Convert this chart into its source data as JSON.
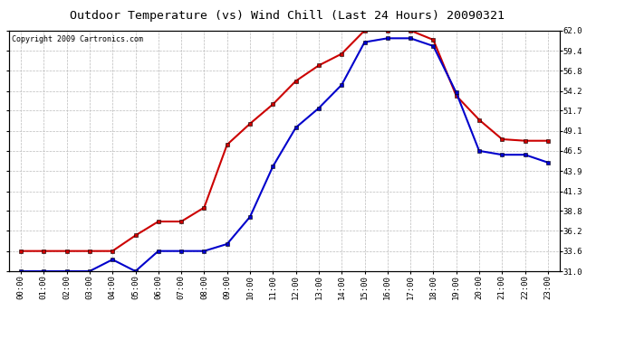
{
  "title": "Outdoor Temperature (vs) Wind Chill (Last 24 Hours) 20090321",
  "copyright": "Copyright 2009 Cartronics.com",
  "x_labels": [
    "00:00",
    "01:00",
    "02:00",
    "03:00",
    "04:00",
    "05:00",
    "06:00",
    "07:00",
    "08:00",
    "09:00",
    "10:00",
    "11:00",
    "12:00",
    "13:00",
    "14:00",
    "15:00",
    "16:00",
    "17:00",
    "18:00",
    "19:00",
    "20:00",
    "21:00",
    "22:00",
    "23:00"
  ],
  "outdoor_temp": [
    33.6,
    33.6,
    33.6,
    33.6,
    33.6,
    35.6,
    37.4,
    37.4,
    39.2,
    47.3,
    50.0,
    52.5,
    55.5,
    57.5,
    59.0,
    62.0,
    62.0,
    62.0,
    60.8,
    53.6,
    50.5,
    48.0,
    47.8,
    47.8
  ],
  "wind_chill": [
    31.0,
    31.0,
    31.0,
    31.0,
    32.5,
    31.0,
    33.6,
    33.6,
    33.6,
    34.5,
    38.0,
    44.5,
    49.5,
    52.0,
    55.0,
    60.5,
    61.0,
    61.0,
    60.0,
    54.0,
    46.5,
    46.0,
    46.0,
    45.0
  ],
  "temp_color": "#cc0000",
  "windchill_color": "#0000cc",
  "bg_color": "#ffffff",
  "grid_color": "#bbbbbb",
  "ylim_min": 31.0,
  "ylim_max": 62.0,
  "yticks": [
    31.0,
    33.6,
    36.2,
    38.8,
    41.3,
    43.9,
    46.5,
    49.1,
    51.7,
    54.2,
    56.8,
    59.4,
    62.0
  ],
  "title_fontsize": 9.5,
  "copyright_fontsize": 6,
  "tick_fontsize": 6.5,
  "marker": "s",
  "marker_size": 2.5,
  "linewidth": 1.5
}
